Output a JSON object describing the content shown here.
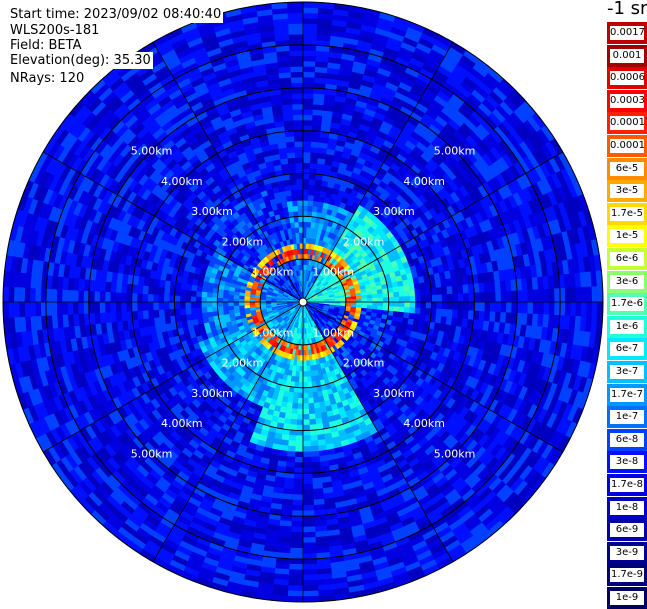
{
  "info": {
    "start_time": "Start time: 2023/09/02 08:40:40",
    "instrument": "WLS200s-181",
    "field": "Field: BETA",
    "elevation": "Elevation(deg): 35.30",
    "nrays": "NRays: 120"
  },
  "chart_data": {
    "type": "heatmap",
    "projection": "polar",
    "unit_label": "-1 sr",
    "range_rings_km": [
      1,
      2,
      3,
      4,
      5,
      6
    ],
    "range_ring_labels": [
      "1.00km",
      "2.00km",
      "3.00km",
      "4.00km",
      "5.00km"
    ],
    "spokes_deg": [
      0,
      30,
      60,
      90,
      120,
      150,
      180,
      210,
      240,
      270,
      300,
      330
    ],
    "max_range_km": 7.0,
    "nrays": 120,
    "colorbar": {
      "labels": [
        "0.0017",
        "0.001",
        "0.0006",
        "0.0003",
        "0.00017",
        "0.0001",
        "6e-5",
        "3e-5",
        "1.7e-5",
        "1e-5",
        "6e-6",
        "3e-6",
        "1.7e-6",
        "1e-6",
        "6e-7",
        "3e-7",
        "1.7e-7",
        "1e-7",
        "6e-8",
        "3e-8",
        "1.7e-8",
        "1e-8",
        "6e-9",
        "3e-9",
        "1.7e-9",
        "1e-9"
      ],
      "colors": [
        "#c00000",
        "#a00000",
        "#e00000",
        "#ff0000",
        "#ff2000",
        "#ff5a00",
        "#ff8a00",
        "#ffaa00",
        "#ffd800",
        "#ffff00",
        "#c8ff30",
        "#8cff6e",
        "#50ffb0",
        "#1effe0",
        "#00e8ff",
        "#00c0ff",
        "#0098ff",
        "#0070ff",
        "#0040ff",
        "#0010ff",
        "#0000e0",
        "#0000c0",
        "#0000a8",
        "#000090",
        "#000078",
        "#000060"
      ]
    },
    "sector_pattern": [
      {
        "from_deg": -10,
        "to_deg": 30,
        "radius_km": 2.4,
        "level": "1e-7"
      },
      {
        "from_deg": 30,
        "to_deg": 95,
        "radius_km": 2.6,
        "level": "6e-7"
      },
      {
        "from_deg": 95,
        "to_deg": 150,
        "radius_km": 2.1,
        "level": "3e-8"
      },
      {
        "from_deg": 150,
        "to_deg": 200,
        "radius_km": 3.5,
        "level": "3e-7"
      },
      {
        "from_deg": 200,
        "to_deg": 250,
        "radius_km": 2.6,
        "level": "1.7e-7"
      },
      {
        "from_deg": 250,
        "to_deg": 300,
        "radius_km": 2.4,
        "level": "1e-7"
      },
      {
        "from_deg": 300,
        "to_deg": 350,
        "radius_km": 2.8,
        "level": "3e-8"
      }
    ],
    "ring_feature": {
      "radius_km": 1.15,
      "level_peak": "0.0003",
      "level_edge": "1e-5"
    },
    "background_level": "1.7e-8"
  }
}
